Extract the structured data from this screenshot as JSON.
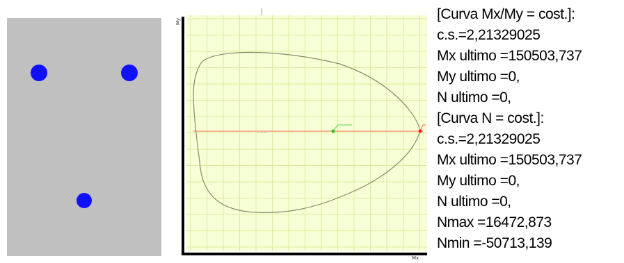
{
  "colors": {
    "section_fill": "#c0c0c0",
    "rebar": "#1010ff",
    "diagram_grid_bg": "#f6ffd6",
    "diagram_grid_line": "#d9ec9c",
    "diagram_curve": "#8a8a6a",
    "diagram_axis_line": "#ff9a84",
    "diagram_frame": "#000000",
    "marker_green": "#22cc22",
    "marker_red": "#ff2020"
  },
  "diagram": {
    "y_axis_label": "My",
    "x_axis_label": "Mx"
  },
  "results": {
    "lines": [
      "[Curva Mx/My = cost.]:",
      "c.s.=2,21329025",
      "Mx ultimo =150503,737",
      "My ultimo =0,",
      "N  ultimo =0,",
      "[Curva N = cost.]:",
      "c.s.=2,21329025",
      "Mx ultimo =150503,737",
      "My ultimo =0,",
      "N  ultimo =0,",
      "Nmax =16472,873",
      "Nmin =-50713,139"
    ]
  }
}
